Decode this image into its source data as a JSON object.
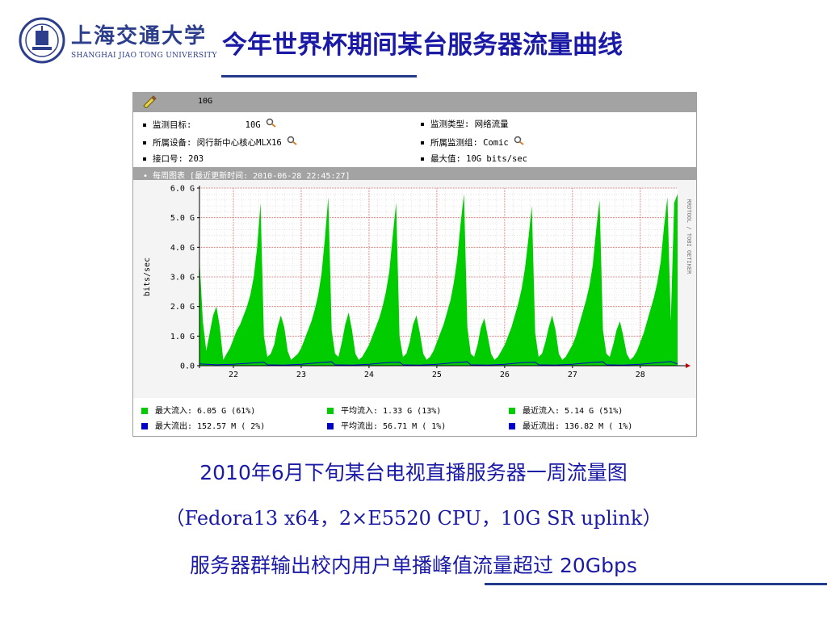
{
  "header": {
    "logo_text": "上海交通大学",
    "logo_subtitle": "SHANGHAI JIAO TONG UNIVERSITY",
    "title": "今年世界杯期间某台服务器流量曲线"
  },
  "panel": {
    "name": "10G",
    "info": {
      "target_label": "监测目标:",
      "target_value": "10G",
      "device": "所属设备: 闵行新中心核心MLX16",
      "port": "接口号: 203",
      "monitor_type": "监测类型: 网络流量",
      "monitor_group": "所属监测组: Comic",
      "max_value": "最大值: 10G bits/sec"
    },
    "weekly_bar": "• 每周图表 [最近更新时间: 2010-06-28 22:45:27]",
    "side_text": "RRDTOOL / TOBI OETIKER"
  },
  "chart_data": {
    "type": "area",
    "ylabel": "bits/sec",
    "ylim": [
      0,
      6.0
    ],
    "yticks": [
      "0.0",
      "1.0 G",
      "2.0 G",
      "3.0 G",
      "4.0 G",
      "5.0 G",
      "6.0 G"
    ],
    "xticks": [
      "22",
      "23",
      "24",
      "25",
      "26",
      "27",
      "28"
    ],
    "x_range": [
      21.5,
      28.55
    ],
    "series": [
      {
        "name": "流入",
        "color": "#00cc00",
        "x": [
          21.5,
          21.55,
          21.6,
          21.65,
          21.7,
          21.75,
          21.8,
          21.85,
          21.9,
          21.95,
          22.0,
          22.05,
          22.1,
          22.15,
          22.2,
          22.25,
          22.3,
          22.35,
          22.4,
          22.45,
          22.5,
          22.55,
          22.6,
          22.65,
          22.7,
          22.75,
          22.8,
          22.85,
          22.9,
          22.95,
          23.0,
          23.05,
          23.1,
          23.15,
          23.2,
          23.25,
          23.3,
          23.35,
          23.4,
          23.45,
          23.5,
          23.55,
          23.6,
          23.65,
          23.7,
          23.75,
          23.8,
          23.85,
          23.9,
          23.95,
          24.0,
          24.05,
          24.1,
          24.15,
          24.2,
          24.25,
          24.3,
          24.35,
          24.4,
          24.45,
          24.5,
          24.55,
          24.6,
          24.65,
          24.7,
          24.75,
          24.8,
          24.85,
          24.9,
          24.95,
          25.0,
          25.05,
          25.1,
          25.15,
          25.2,
          25.25,
          25.3,
          25.35,
          25.4,
          25.45,
          25.5,
          25.55,
          25.6,
          25.65,
          25.7,
          25.75,
          25.8,
          25.85,
          25.9,
          25.95,
          26.0,
          26.05,
          26.1,
          26.15,
          26.2,
          26.25,
          26.3,
          26.35,
          26.4,
          26.45,
          26.5,
          26.55,
          26.6,
          26.65,
          26.7,
          26.75,
          26.8,
          26.85,
          26.9,
          26.95,
          27.0,
          27.05,
          27.1,
          27.15,
          27.2,
          27.25,
          27.3,
          27.35,
          27.4,
          27.45,
          27.5,
          27.55,
          27.6,
          27.65,
          27.7,
          27.75,
          27.8,
          27.85,
          27.9,
          27.95,
          28.0,
          28.05,
          28.1,
          28.15,
          28.2,
          28.25,
          28.3,
          28.35,
          28.4,
          28.45,
          28.5,
          28.55
        ],
        "values": [
          3.6,
          1.5,
          0.5,
          1.1,
          1.7,
          2.0,
          1.3,
          0.2,
          0.4,
          0.6,
          0.9,
          1.2,
          1.4,
          1.7,
          2.0,
          2.4,
          3.0,
          4.0,
          5.5,
          1.0,
          0.3,
          0.4,
          0.7,
          1.3,
          1.7,
          1.3,
          0.5,
          0.2,
          0.3,
          0.4,
          0.6,
          0.9,
          1.2,
          1.5,
          1.9,
          2.4,
          3.1,
          4.3,
          5.7,
          1.2,
          0.4,
          0.3,
          0.8,
          1.4,
          1.8,
          1.2,
          0.4,
          0.2,
          0.3,
          0.5,
          0.7,
          1.0,
          1.3,
          1.6,
          2.0,
          2.5,
          3.2,
          4.4,
          5.5,
          1.0,
          0.3,
          0.4,
          0.8,
          1.4,
          1.7,
          1.1,
          0.4,
          0.2,
          0.3,
          0.5,
          0.8,
          1.1,
          1.4,
          1.8,
          2.2,
          2.8,
          3.6,
          4.8,
          5.8,
          1.3,
          0.4,
          0.3,
          0.7,
          1.3,
          1.6,
          1.0,
          0.4,
          0.2,
          0.3,
          0.5,
          0.7,
          1.0,
          1.3,
          1.7,
          2.1,
          2.6,
          3.3,
          4.3,
          5.4,
          1.1,
          0.3,
          0.4,
          0.8,
          1.3,
          1.7,
          1.2,
          0.4,
          0.2,
          0.3,
          0.5,
          0.7,
          1.0,
          1.4,
          1.8,
          2.2,
          2.7,
          3.4,
          4.6,
          5.6,
          1.2,
          0.4,
          0.3,
          0.7,
          1.2,
          1.5,
          1.0,
          0.4,
          0.2,
          0.3,
          0.5,
          0.8,
          1.1,
          1.5,
          1.9,
          2.3,
          2.8,
          3.5,
          4.7,
          5.7,
          1.5,
          5.5,
          5.8
        ]
      },
      {
        "name": "流出",
        "color": "#0000cc",
        "x": [
          21.5,
          21.75,
          22.0,
          22.25,
          22.45,
          22.5,
          22.75,
          23.0,
          23.25,
          23.45,
          23.5,
          23.75,
          24.0,
          24.25,
          24.45,
          24.5,
          24.75,
          25.0,
          25.25,
          25.45,
          25.5,
          25.75,
          26.0,
          26.25,
          26.45,
          26.5,
          26.75,
          27.0,
          27.25,
          27.45,
          27.5,
          27.75,
          28.0,
          28.25,
          28.45,
          28.55
        ],
        "values": [
          0.06,
          0.03,
          0.05,
          0.09,
          0.12,
          0.03,
          0.02,
          0.05,
          0.1,
          0.13,
          0.03,
          0.02,
          0.05,
          0.1,
          0.12,
          0.03,
          0.02,
          0.05,
          0.1,
          0.13,
          0.03,
          0.02,
          0.05,
          0.1,
          0.12,
          0.03,
          0.02,
          0.05,
          0.1,
          0.13,
          0.03,
          0.02,
          0.05,
          0.1,
          0.14,
          0.06
        ]
      }
    ]
  },
  "legend": {
    "max_in": "最大流入: 6.05 G (61%)",
    "avg_in": "平均流入: 1.33 G (13%)",
    "cur_in": "最近流入: 5.14 G (51%)",
    "max_out": "最大流出: 152.57 M ( 2%)",
    "avg_out": "平均流出: 56.71 M ( 1%)",
    "cur_out": "最近流出: 136.82 M ( 1%)"
  },
  "caption": {
    "line1": "2010年6月下旬某台电视直播服务器一周流量图",
    "line2": "（Fedora13 x64，2×E5520 CPU，10G SR uplink）",
    "line3": "服务器群输出校内用户单播峰值流量超过 20Gbps"
  }
}
